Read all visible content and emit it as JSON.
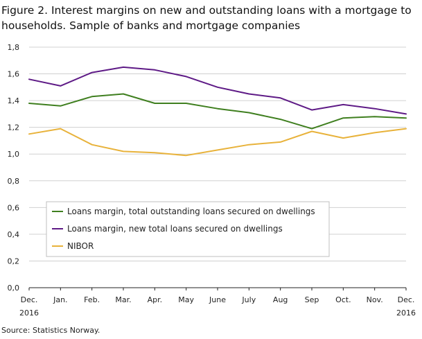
{
  "figure": {
    "title": "Figure 2. Interest margins on new and outstanding loans with a mortgage to households. Sample of banks and mortgage companies",
    "source": "Source: Statistics Norway."
  },
  "chart_data": {
    "type": "line",
    "title": "Figure 2. Interest margins on new and outstanding loans with a mortgage to households. Sample of banks and mortgage companies",
    "xlabel": "",
    "ylabel": "",
    "categories": [
      "Dec.",
      "Jan.",
      "Feb.",
      "Mar.",
      "Apr.",
      "May",
      "June",
      "July",
      "Aug",
      "Sep",
      "Oct.",
      "Nov.",
      "Dec."
    ],
    "year_labels": [
      {
        "index": 0,
        "label": "2016"
      },
      {
        "index": 12,
        "label": "2016"
      }
    ],
    "ylim": [
      0,
      1.8
    ],
    "yticks": [
      "0,0",
      "0,2",
      "0,4",
      "0,6",
      "0,8",
      "1,0",
      "1,2",
      "1,4",
      "1,6",
      "1,8"
    ],
    "grid": "horizontal",
    "legend_position": "lower-left",
    "series": [
      {
        "name": "Loans margin, total outstanding loans secured on dwellings",
        "color": "#3f7f1f",
        "values": [
          1.38,
          1.36,
          1.43,
          1.45,
          1.38,
          1.38,
          1.34,
          1.31,
          1.26,
          1.19,
          1.27,
          1.28,
          1.27
        ]
      },
      {
        "name": "Loans margin, new total loans secured on dwellings",
        "color": "#5e1a86",
        "values": [
          1.56,
          1.51,
          1.61,
          1.65,
          1.63,
          1.58,
          1.5,
          1.45,
          1.42,
          1.33,
          1.37,
          1.34,
          1.3
        ]
      },
      {
        "name": "NIBOR",
        "color": "#e8b23a",
        "values": [
          1.15,
          1.19,
          1.07,
          1.02,
          1.01,
          0.99,
          1.03,
          1.07,
          1.09,
          1.17,
          1.12,
          1.16,
          1.19
        ]
      }
    ]
  }
}
